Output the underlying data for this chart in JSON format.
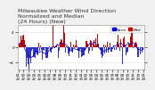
{
  "title_line1": "Milwaukee Weather Wind Direction",
  "title_line2": "Normalized and Median",
  "title_line3": "(24 Hours) (New)",
  "background_color": "#f0f0f0",
  "plot_bg_color": "#ffffff",
  "bar_color": "#cc0000",
  "median_line_color": "#0000cc",
  "ylim": [
    -6,
    6
  ],
  "legend_label1": "Norm",
  "legend_label2": "Med",
  "legend_color1": "#0000ff",
  "legend_color2": "#cc0000",
  "title_fontsize": 4.5,
  "tick_fontsize": 2.8,
  "num_bars": 200,
  "seed": 42
}
